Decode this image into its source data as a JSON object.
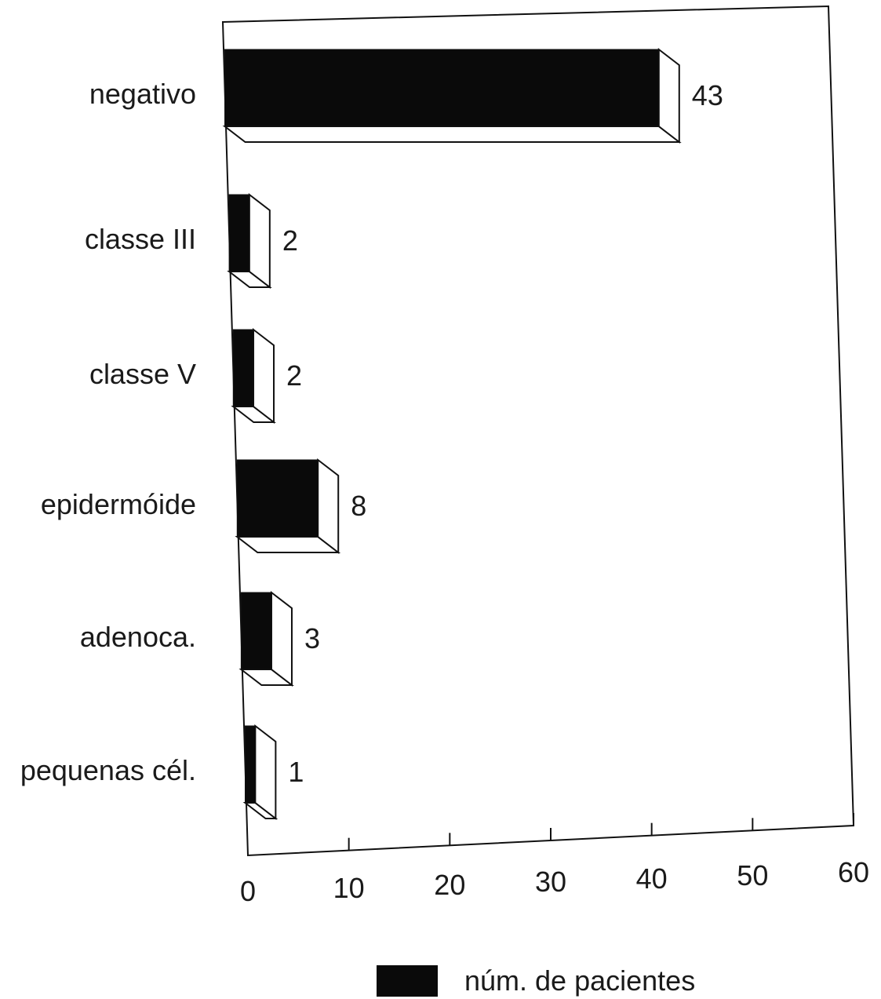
{
  "chart_data": {
    "type": "bar",
    "orientation": "horizontal",
    "style": "3d",
    "categories": [
      "negativo",
      "classe III",
      "classe V",
      "epidermóide",
      "adenoca.",
      "pequenas cél."
    ],
    "series": [
      {
        "name": "núm. de pacientes",
        "values": [
          43,
          2,
          2,
          8,
          3,
          1
        ],
        "color": "#0a0a0a"
      }
    ],
    "data_labels": [
      "43",
      "2",
      "2",
      "8",
      "3",
      "1"
    ],
    "x_ticks": [
      "0",
      "10",
      "20",
      "30",
      "40",
      "50",
      "60"
    ],
    "xlim": [
      0,
      60
    ],
    "grid": false,
    "legend_position": "bottom"
  }
}
